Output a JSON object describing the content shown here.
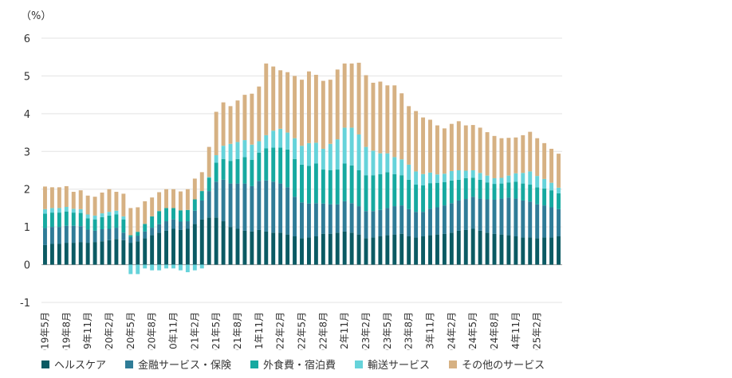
{
  "chart_data": {
    "type": "bar",
    "stacked": true,
    "y_unit_label": "（%）",
    "ylim": [
      -1,
      6
    ],
    "yticks": [
      -1,
      0,
      1,
      2,
      3,
      4,
      5,
      6
    ],
    "grid": true,
    "legend_position": "bottom",
    "tick_labels": [
      {
        "index": 0,
        "label": "2019年5月"
      },
      {
        "index": 3,
        "label": "2019年8月"
      },
      {
        "index": 6,
        "label": "2019年11月"
      },
      {
        "index": 9,
        "label": "2020年2月"
      },
      {
        "index": 12,
        "label": "2020年5月"
      },
      {
        "index": 15,
        "label": "2020年8月"
      },
      {
        "index": 18,
        "label": "2020年11月"
      },
      {
        "index": 21,
        "label": "2021年2月"
      },
      {
        "index": 24,
        "label": "2021年5月"
      },
      {
        "index": 27,
        "label": "2021年8月"
      },
      {
        "index": 30,
        "label": "2021年11月"
      },
      {
        "index": 33,
        "label": "2022年2月"
      },
      {
        "index": 36,
        "label": "2022年5月"
      },
      {
        "index": 39,
        "label": "2022年8月"
      },
      {
        "index": 42,
        "label": "2022年11月"
      },
      {
        "index": 45,
        "label": "2023年2月"
      },
      {
        "index": 48,
        "label": "2023年5月"
      },
      {
        "index": 51,
        "label": "2023年8月"
      },
      {
        "index": 54,
        "label": "2023年11月"
      },
      {
        "index": 57,
        "label": "2024年2月"
      },
      {
        "index": 60,
        "label": "2024年5月"
      },
      {
        "index": 63,
        "label": "2024年8月"
      },
      {
        "index": 66,
        "label": "2024年11月"
      },
      {
        "index": 69,
        "label": "2025年2月"
      }
    ],
    "series": [
      {
        "name": "ヘルスケア",
        "color": "#0b5a63",
        "values": [
          0.52,
          0.55,
          0.55,
          0.58,
          0.58,
          0.6,
          0.58,
          0.6,
          0.62,
          0.65,
          0.68,
          0.65,
          0.58,
          0.62,
          0.7,
          0.78,
          0.85,
          0.9,
          0.95,
          0.92,
          0.95,
          1.08,
          1.2,
          1.25,
          1.25,
          1.15,
          1.0,
          0.95,
          0.9,
          0.88,
          0.92,
          0.88,
          0.85,
          0.85,
          0.8,
          0.75,
          0.7,
          0.72,
          0.75,
          0.82,
          0.82,
          0.85,
          0.88,
          0.85,
          0.8,
          0.7,
          0.72,
          0.75,
          0.78,
          0.8,
          0.82,
          0.75,
          0.72,
          0.75,
          0.78,
          0.8,
          0.82,
          0.85,
          0.9,
          0.92,
          0.95,
          0.9,
          0.85,
          0.82,
          0.8,
          0.78,
          0.75,
          0.72,
          0.72,
          0.7,
          0.72,
          0.72,
          0.75
        ]
      },
      {
        "name": "金融サービス・保険",
        "color": "#2f7c97",
        "values": [
          0.45,
          0.45,
          0.45,
          0.45,
          0.45,
          0.42,
          0.35,
          0.3,
          0.32,
          0.3,
          0.3,
          0.2,
          0.15,
          0.15,
          0.18,
          0.2,
          0.22,
          0.25,
          0.25,
          0.22,
          0.2,
          0.35,
          0.5,
          0.7,
          0.95,
          1.1,
          1.15,
          1.2,
          1.25,
          1.2,
          1.3,
          1.35,
          1.35,
          1.3,
          1.25,
          1.05,
          0.95,
          0.9,
          0.88,
          0.8,
          0.78,
          0.75,
          0.8,
          0.78,
          0.75,
          0.72,
          0.7,
          0.7,
          0.72,
          0.75,
          0.75,
          0.72,
          0.68,
          0.65,
          0.7,
          0.72,
          0.75,
          0.78,
          0.8,
          0.82,
          0.85,
          0.85,
          0.88,
          0.9,
          0.95,
          1.0,
          1.0,
          0.98,
          0.95,
          0.9,
          0.85,
          0.8,
          0.72
        ]
      },
      {
        "name": "外食費・宿泊費",
        "color": "#16a9a0",
        "values": [
          0.38,
          0.38,
          0.38,
          0.38,
          0.35,
          0.35,
          0.3,
          0.3,
          0.32,
          0.35,
          0.35,
          0.35,
          0.05,
          0.1,
          0.2,
          0.3,
          0.35,
          0.35,
          0.3,
          0.3,
          0.3,
          0.3,
          0.25,
          0.35,
          0.5,
          0.55,
          0.6,
          0.65,
          0.7,
          0.7,
          0.75,
          0.85,
          0.9,
          0.95,
          1.0,
          1.0,
          1.0,
          1.0,
          1.05,
          0.9,
          0.9,
          0.92,
          1.0,
          1.0,
          0.95,
          0.95,
          0.95,
          0.95,
          0.95,
          0.85,
          0.8,
          0.78,
          0.72,
          0.7,
          0.68,
          0.65,
          0.62,
          0.6,
          0.55,
          0.55,
          0.5,
          0.5,
          0.45,
          0.42,
          0.4,
          0.4,
          0.45,
          0.45,
          0.45,
          0.45,
          0.45,
          0.45,
          0.42
        ]
      },
      {
        "name": "輸送サービス",
        "color": "#66d3da",
        "values": [
          0.12,
          0.12,
          0.12,
          0.12,
          0.1,
          0.1,
          0.1,
          0.1,
          0.1,
          0.1,
          0.1,
          0.08,
          -0.25,
          -0.25,
          -0.1,
          -0.15,
          -0.15,
          -0.1,
          -0.1,
          -0.15,
          -0.2,
          -0.15,
          -0.1,
          0.02,
          0.2,
          0.35,
          0.45,
          0.45,
          0.45,
          0.4,
          0.3,
          0.35,
          0.45,
          0.5,
          0.45,
          0.55,
          0.5,
          0.6,
          0.55,
          0.55,
          0.7,
          0.8,
          0.95,
          1.0,
          0.95,
          0.75,
          0.65,
          0.55,
          0.5,
          0.45,
          0.42,
          0.4,
          0.35,
          0.3,
          0.28,
          0.22,
          0.22,
          0.25,
          0.25,
          0.2,
          0.2,
          0.18,
          0.18,
          0.15,
          0.15,
          0.18,
          0.22,
          0.28,
          0.35,
          0.3,
          0.25,
          0.2,
          0.15
        ]
      },
      {
        "name": "その他のサービス",
        "color": "#d6b183",
        "values": [
          0.6,
          0.55,
          0.55,
          0.55,
          0.45,
          0.5,
          0.5,
          0.5,
          0.55,
          0.6,
          0.5,
          0.6,
          0.72,
          0.65,
          0.6,
          0.5,
          0.5,
          0.5,
          0.5,
          0.5,
          0.55,
          0.55,
          0.5,
          0.8,
          1.15,
          1.15,
          1.0,
          1.1,
          1.2,
          1.35,
          1.45,
          1.9,
          1.7,
          1.55,
          1.6,
          1.65,
          1.75,
          1.9,
          1.8,
          1.8,
          1.7,
          1.85,
          1.7,
          1.7,
          1.9,
          1.9,
          1.8,
          1.9,
          1.8,
          1.9,
          1.75,
          1.55,
          1.6,
          1.5,
          1.4,
          1.3,
          1.2,
          1.25,
          1.3,
          1.2,
          1.2,
          1.2,
          1.15,
          1.12,
          1.05,
          1.0,
          0.95,
          1.0,
          1.05,
          1.0,
          0.95,
          0.9,
          0.9
        ]
      }
    ]
  }
}
